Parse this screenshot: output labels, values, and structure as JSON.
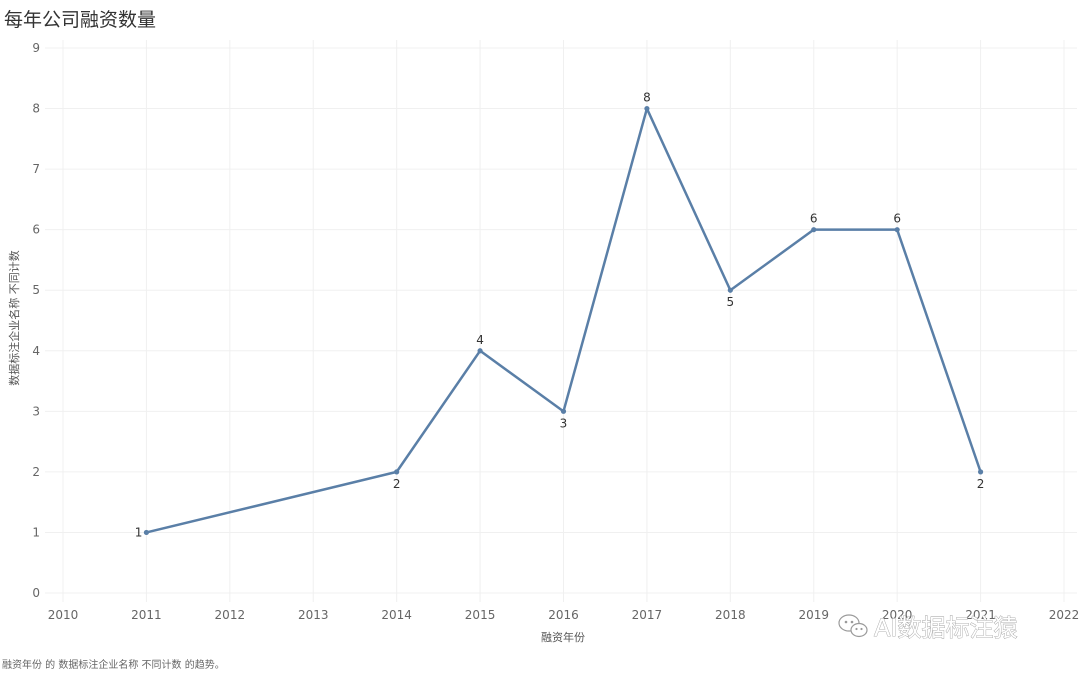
{
  "chart_data": {
    "type": "line",
    "title": "每年公司融资数量",
    "xlabel": "融资年份",
    "ylabel": "数据标注企业名称 不同计数",
    "caption": "融资年份 的 数据标注企业名称 不同计数 的趋势。",
    "x_ticks": [
      "2010",
      "2011",
      "2012",
      "2013",
      "2014",
      "2015",
      "2016",
      "2017",
      "2018",
      "2019",
      "2020",
      "2021",
      "2022"
    ],
    "y_ticks": [
      "0",
      "1",
      "2",
      "3",
      "4",
      "5",
      "6",
      "7",
      "8",
      "9"
    ],
    "xlim": [
      2010,
      2022
    ],
    "ylim": [
      0,
      9
    ],
    "grid": true,
    "series": [
      {
        "x": [
          2011,
          2014,
          2015,
          2016,
          2017,
          2018,
          2019,
          2020,
          2021
        ],
        "values": [
          1,
          2,
          4,
          3,
          8,
          5,
          6,
          6,
          2
        ],
        "labels": [
          "1",
          "2",
          "4",
          "3",
          "8",
          "5",
          "6",
          "6",
          "2"
        ],
        "color": "#5a7fa7"
      }
    ]
  },
  "watermark": {
    "text": "AI数据标注猿",
    "icon": "wechat-icon"
  }
}
